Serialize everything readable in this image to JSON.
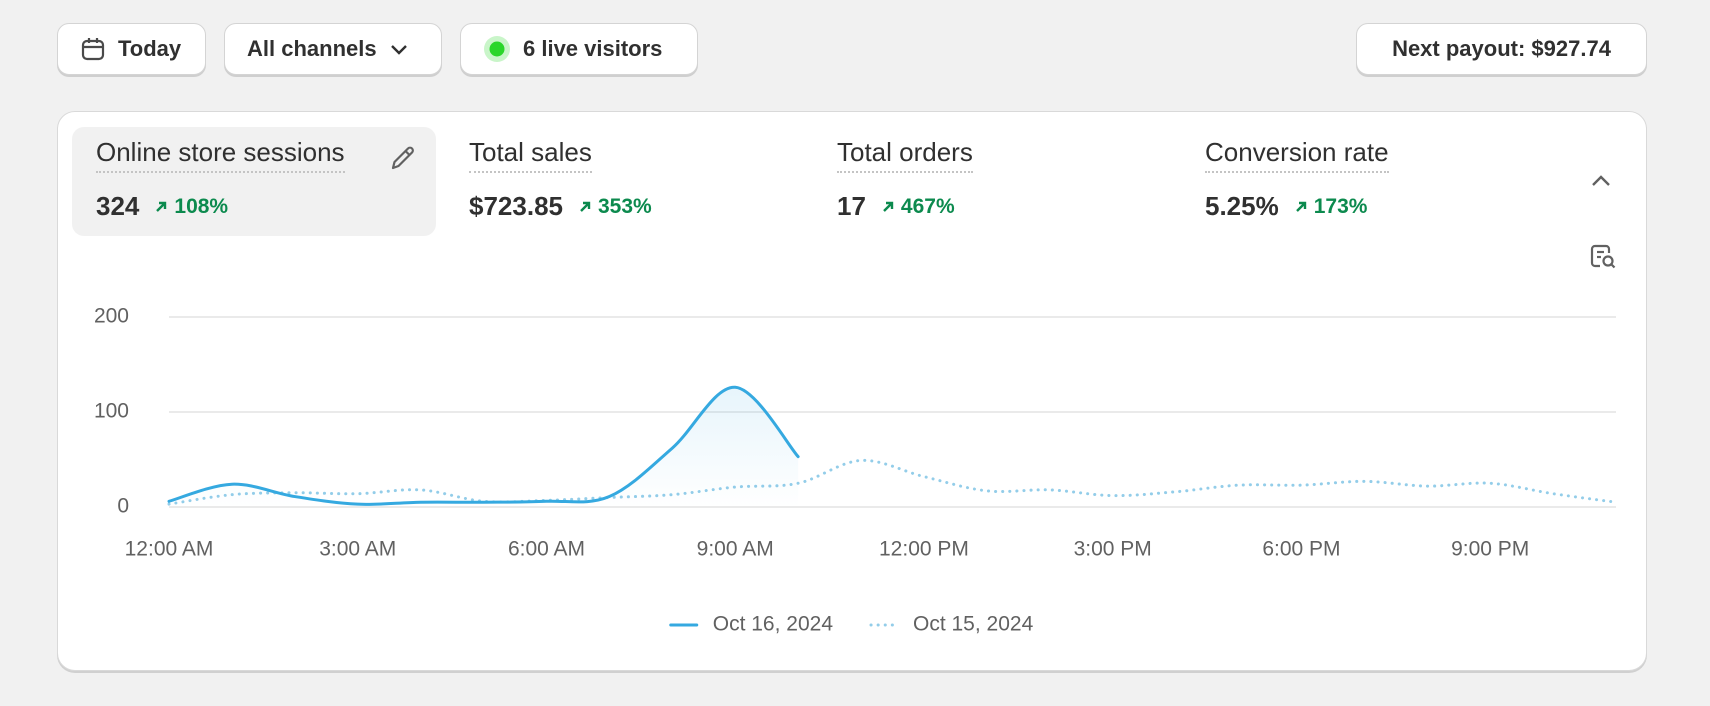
{
  "toolbar": {
    "date": "Today",
    "channel": "All channels",
    "live_visitors": "6 live visitors",
    "payout": "Next payout: $927.74"
  },
  "metrics": [
    {
      "label": "Online store sessions",
      "value": "324",
      "change": "108%"
    },
    {
      "label": "Total sales",
      "value": "$723.85",
      "change": "353%"
    },
    {
      "label": "Total orders",
      "value": "17",
      "change": "467%"
    },
    {
      "label": "Conversion rate",
      "value": "5.25%",
      "change": "173%"
    }
  ],
  "chart_data": {
    "type": "line",
    "categories": [
      "12:00 AM",
      null,
      null,
      "3:00 AM",
      null,
      null,
      "6:00 AM",
      null,
      null,
      "9:00 AM",
      null,
      null,
      "12:00 PM",
      null,
      null,
      "3:00 PM",
      null,
      null,
      "6:00 PM",
      null,
      null,
      "9:00 PM",
      null,
      null
    ],
    "series": [
      {
        "name": "Oct 16, 2024",
        "color": "#35a9e0",
        "style": "solid",
        "values": [
          6,
          24,
          11,
          3,
          5,
          5,
          6,
          11,
          62,
          126,
          53,
          null,
          null,
          null,
          null,
          null,
          null,
          null,
          null,
          null,
          null,
          null,
          null,
          null
        ]
      },
      {
        "name": "Oct 15, 2024",
        "color": "#93cde9",
        "style": "dotted",
        "values": [
          3,
          13,
          15,
          14,
          18,
          6,
          7,
          10,
          13,
          21,
          25,
          49,
          32,
          17,
          18,
          12,
          16,
          23,
          23,
          27,
          22,
          25,
          14,
          5
        ]
      }
    ],
    "ylim": [
      0,
      200
    ],
    "yticks": [
      0,
      100,
      200
    ],
    "grid": true,
    "legend": "bottom"
  }
}
